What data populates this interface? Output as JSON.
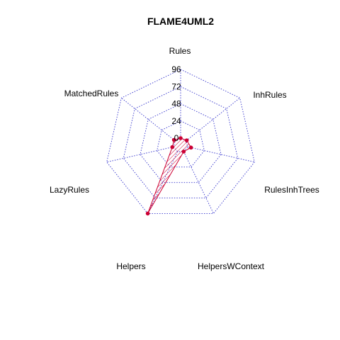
{
  "chart_data": {
    "type": "radar",
    "title": "FLAME4UML2",
    "axes": [
      "Rules",
      "InhRules",
      "RulesInhTrees",
      "HelpersWContext",
      "Helpers",
      "LazyRules",
      "MatchedRules"
    ],
    "ticks": [
      "0",
      "24",
      "48",
      "72",
      "96"
    ],
    "range": [
      0,
      96
    ],
    "series": [
      {
        "values": [
          0,
          1,
          5,
          0,
          96,
          2,
          2
        ]
      }
    ],
    "colors": {
      "grid": "#3333cc",
      "series": "#cc0033"
    },
    "grid": "dotted polygons"
  }
}
